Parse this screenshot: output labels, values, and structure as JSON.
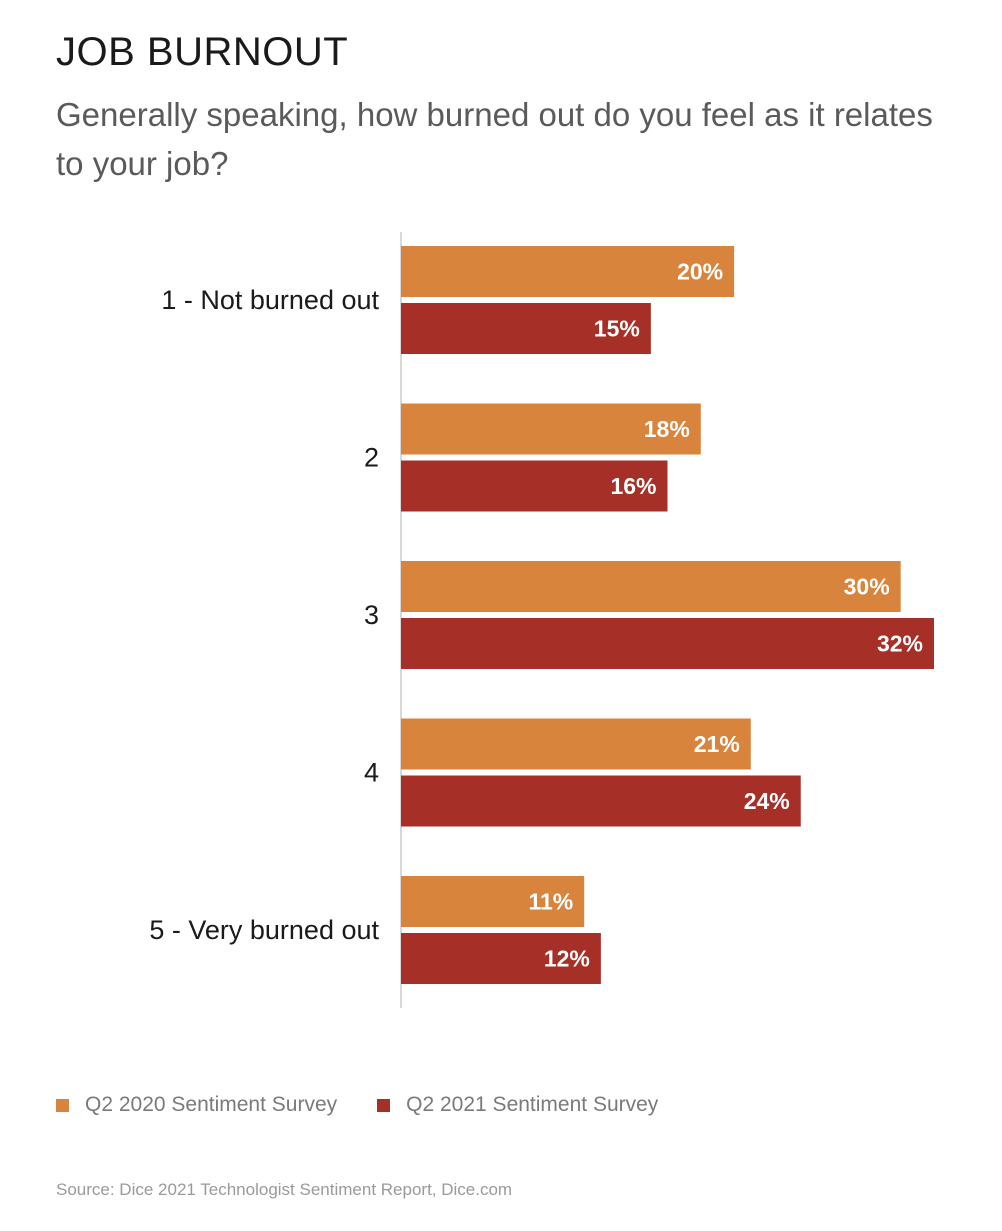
{
  "header": {
    "title": "JOB BURNOUT",
    "subtitle": "Generally speaking, how burned out do you feel as it relates to your job?"
  },
  "colors": {
    "series_2020": "#d8843c",
    "series_2021": "#a62f27",
    "axis": "#cccccc",
    "bar_label": "#ffffff",
    "category_label": "#1a1a1a"
  },
  "chart_data": {
    "type": "bar",
    "orientation": "horizontal",
    "categories": [
      "1 - Not burned out",
      "2",
      "3",
      "4",
      "5 - Very burned out"
    ],
    "series": [
      {
        "name": "Q2 2020 Sentiment Survey",
        "values": [
          20,
          18,
          30,
          21,
          11
        ]
      },
      {
        "name": "Q2 2021 Sentiment Survey",
        "values": [
          15,
          16,
          32,
          24,
          12
        ]
      }
    ],
    "value_suffix": "%",
    "xlim": [
      0,
      32
    ],
    "grid": false,
    "legend_position": "bottom-left"
  },
  "source": "Source: Dice 2021 Technologist Sentiment Report, Dice.com"
}
